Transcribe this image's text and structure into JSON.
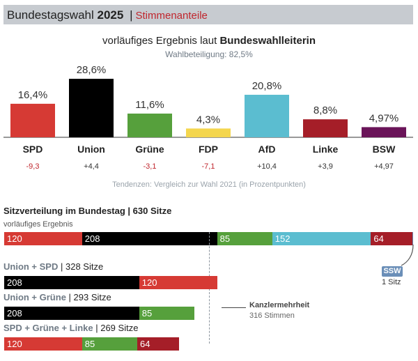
{
  "header": {
    "title_main": "Bundestagswahl",
    "title_year": "2025",
    "separator": "|",
    "subtitle": "Stimmenanteile"
  },
  "subtitle_prefix": "vorläufiges Ergebnis laut ",
  "subtitle_strong": "Bundeswahlleiterin",
  "turnout": "Wahlbeteiligung: 82,5%",
  "note": "Tendenzen: Vergleich zur Wahl 2021 (in Prozentpunkten)",
  "chart_data": [
    {
      "type": "bar",
      "categories": [
        "SPD",
        "Union",
        "Grüne",
        "FDP",
        "AfD",
        "Linke",
        "BSW"
      ],
      "values": [
        16.4,
        28.6,
        11.6,
        4.3,
        20.8,
        8.8,
        4.97
      ],
      "value_labels": [
        "16,4%",
        "28,6%",
        "11,6%",
        "4,3%",
        "20,8%",
        "8,8%",
        "4,97%"
      ],
      "changes": [
        "-9,3",
        "+4,4",
        "-3,1",
        "-7,1",
        "+10,4",
        "+3,9",
        "+4,97"
      ],
      "change_negative": [
        true,
        false,
        true,
        true,
        false,
        false,
        false
      ],
      "colors": [
        "#d63a34",
        "#000000",
        "#56a03c",
        "#f4d64e",
        "#5bbdd0",
        "#a51e28",
        "#6a1459"
      ],
      "ylim": [
        0,
        30
      ]
    },
    {
      "type": "bar",
      "title": "Sitzverteilung im Bundestag | 630 Sitze",
      "subtitle": "vorläufiges Ergebnis",
      "total": 630,
      "segments": [
        {
          "party": "SPD",
          "seats": 120,
          "label": "120",
          "color": "#d63a34"
        },
        {
          "party": "Union",
          "seats": 208,
          "label": "208",
          "color": "#000000"
        },
        {
          "party": "Grüne",
          "seats": 85,
          "label": "85",
          "color": "#56a03c"
        },
        {
          "party": "AfD",
          "seats": 152,
          "label": "152",
          "color": "#5bbdd0"
        },
        {
          "party": "Linke",
          "seats": 64,
          "label": "64",
          "color": "#a51e28"
        },
        {
          "party": "SSW",
          "seats": 1,
          "label": "",
          "color": "#6b8fb8"
        }
      ]
    }
  ],
  "coalitions": [
    {
      "name": "Union + SPD",
      "seats_text": "| 328 Sitze",
      "segments": [
        {
          "seats": 208,
          "label": "208",
          "color": "#000000"
        },
        {
          "seats": 120,
          "label": "120",
          "color": "#d63a34"
        }
      ]
    },
    {
      "name": "Union + Grüne",
      "seats_text": "| 293 Sitze",
      "segments": [
        {
          "seats": 208,
          "label": "208",
          "color": "#000000"
        },
        {
          "seats": 85,
          "label": "85",
          "color": "#56a03c"
        }
      ]
    },
    {
      "name": "SPD + Grüne + Linke",
      "seats_text": "| 269 Sitze",
      "segments": [
        {
          "seats": 120,
          "label": "120",
          "color": "#d63a34"
        },
        {
          "seats": 85,
          "label": "85",
          "color": "#56a03c"
        },
        {
          "seats": 64,
          "label": "64",
          "color": "#a51e28"
        }
      ]
    }
  ],
  "ssw": {
    "badge": "SSW",
    "seats": "1 Sitz"
  },
  "majority": {
    "title": "Kanzlermehrheit",
    "subtitle": "316 Stimmen",
    "seats": 316
  }
}
